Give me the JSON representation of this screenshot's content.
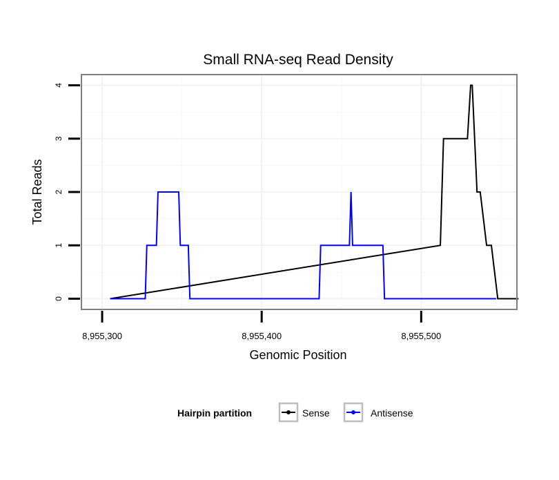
{
  "chart_data": {
    "type": "line",
    "title": "Small RNA-seq Read Density",
    "xlabel": "Genomic Position",
    "ylabel": "Total Reads",
    "xlim": [
      8955287,
      8955560
    ],
    "ylim": [
      -0.2,
      4.2
    ],
    "x_ticks": [
      8955300,
      8955400,
      8955500
    ],
    "x_tick_labels": [
      "8,955,300",
      "8,955,400",
      "8,955,500"
    ],
    "y_ticks": [
      0,
      1,
      2,
      3,
      4
    ],
    "y_tick_labels": [
      "0",
      "1",
      "2",
      "3",
      "4"
    ],
    "grid": true,
    "legend": {
      "title": "Hairpin partition",
      "position": "bottom",
      "entries": [
        "Sense",
        "Antisense"
      ]
    },
    "colors": {
      "Sense": "#000000",
      "Antisense": "#0000ff"
    },
    "series": [
      {
        "name": "Sense",
        "step": true,
        "x": [
          8955305,
          8955512,
          8955514,
          8955528,
          8955529,
          8955531,
          8955532,
          8955535,
          8955537,
          8955541,
          8955544,
          8955548,
          8955561
        ],
        "y": [
          0,
          1,
          3,
          3,
          3,
          4,
          4,
          2,
          2,
          1,
          1,
          0,
          0
        ]
      },
      {
        "name": "Antisense",
        "step": true,
        "x": [
          8955305,
          8955327,
          8955328,
          8955334,
          8955335,
          8955348,
          8955349,
          8955354,
          8955355,
          8955436,
          8955437,
          8955455,
          8955456,
          8955457,
          8955476,
          8955477,
          8955547
        ],
        "y": [
          0,
          0,
          1,
          1,
          2,
          2,
          1,
          1,
          0,
          0,
          1,
          1,
          2,
          1,
          1,
          0,
          0
        ]
      }
    ]
  }
}
